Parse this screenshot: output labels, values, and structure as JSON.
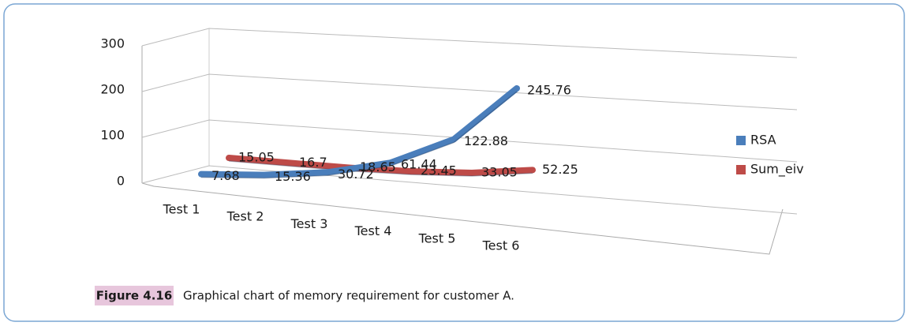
{
  "chart_data": {
    "type": "line",
    "categories": [
      "Test 1",
      "Test 2",
      "Test 3",
      "Test 4",
      "Test 5",
      "Test 6"
    ],
    "series": [
      {
        "name": "RSA",
        "color": "#4a7ebb",
        "values": [
          7.68,
          15.36,
          30.72,
          61.44,
          122.88,
          245.76
        ]
      },
      {
        "name": "Sum_eiv",
        "color": "#be4b48",
        "values": [
          15.05,
          16.7,
          18.65,
          23.45,
          33.05,
          52.25
        ]
      }
    ],
    "ylim": [
      0,
      300
    ],
    "yticks": [
      0,
      100,
      200,
      300
    ],
    "grid": true,
    "legend": "right",
    "figure_label": "Figure 4.16",
    "caption": "Graphical chart of memory requirement for customer A."
  }
}
